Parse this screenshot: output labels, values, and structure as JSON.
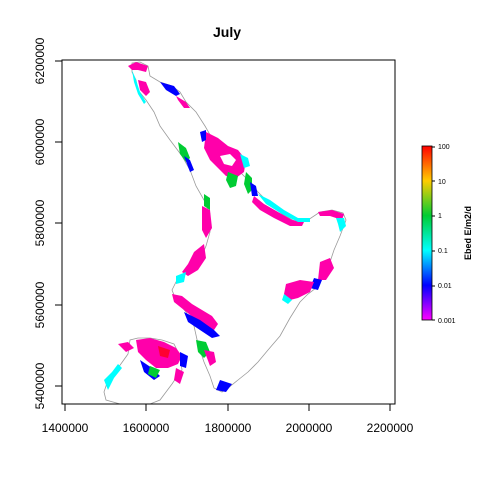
{
  "title": "July",
  "x_axis": {
    "ticks": [
      "1400000",
      "1600000",
      "1800000",
      "2000000",
      "2200000"
    ],
    "range": [
      1400000,
      2200000
    ]
  },
  "y_axis": {
    "ticks": [
      "5400000",
      "5600000",
      "5800000",
      "6000000",
      "6200000"
    ],
    "range": [
      5400000,
      6200000
    ]
  },
  "colorbar": {
    "label": "Ebed E/m2/d",
    "ticks": [
      "100",
      "10",
      "1",
      "0.1",
      "0.01",
      "0.001"
    ],
    "scale": "log",
    "colors": [
      "#ff0000",
      "#ffcc00",
      "#00cc33",
      "#00ffff",
      "#0000ff",
      "#ff00ff"
    ]
  },
  "colors": {
    "land_outline": "#888888",
    "high_value": "#ff00aa",
    "mid_value": "#0000ff",
    "edge_value": "#00ffff"
  }
}
